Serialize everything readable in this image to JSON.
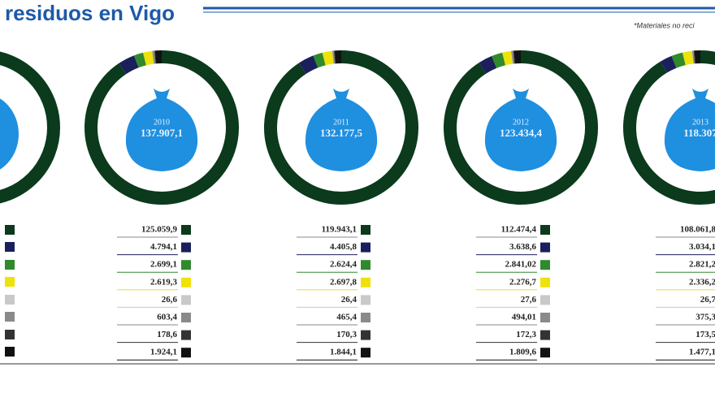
{
  "title": "residuos en Vigo",
  "note": "*Materiales no reci",
  "chart_data": [
    {
      "type": "donut",
      "title": "2010",
      "total": 137907.1,
      "total_label": "137.907,1",
      "colors": [
        "#0b3a1c",
        "#1b1f5c",
        "#2f8a2c",
        "#efe20a",
        "#c9c9c9",
        "#8a8a8a",
        "#333333",
        "#111111"
      ],
      "values": [
        125059.9,
        4794.1,
        2699.1,
        2619.3,
        26.6,
        603.4,
        178.6,
        1924.1
      ],
      "value_labels": [
        "125.059,9",
        "4.794,1",
        "2.699,1",
        "2.619,3",
        "26,6",
        "603,4",
        "178,6",
        "1.924,1"
      ]
    },
    {
      "type": "donut",
      "title": "2011",
      "total": 132177.5,
      "total_label": "132.177,5",
      "colors": [
        "#0b3a1c",
        "#1b1f5c",
        "#2f8a2c",
        "#efe20a",
        "#c9c9c9",
        "#8a8a8a",
        "#333333",
        "#111111"
      ],
      "values": [
        119943.1,
        4405.8,
        2624.4,
        2697.8,
        26.4,
        465.4,
        170.3,
        1844.1
      ],
      "value_labels": [
        "119.943,1",
        "4.405,8",
        "2.624,4",
        "2.697,8",
        "26,4",
        "465,4",
        "170,3",
        "1.844,1"
      ]
    },
    {
      "type": "donut",
      "title": "2012",
      "total": 123434.4,
      "total_label": "123.434,4",
      "colors": [
        "#0b3a1c",
        "#1b1f5c",
        "#2f8a2c",
        "#efe20a",
        "#c9c9c9",
        "#8a8a8a",
        "#333333",
        "#111111"
      ],
      "values": [
        112474.4,
        3638.6,
        2841.02,
        2276.7,
        27.6,
        494.01,
        172.3,
        1809.6
      ],
      "value_labels": [
        "112.474,4",
        "3.638,6",
        "2.841,02",
        "2.276,7",
        "27,6",
        "494,01",
        "172,3",
        "1.809,6"
      ]
    },
    {
      "type": "donut",
      "title": "2013",
      "total": 118307,
      "total_label": "118.307",
      "colors": [
        "#0b3a1c",
        "#1b1f5c",
        "#2f8a2c",
        "#efe20a",
        "#c9c9c9",
        "#8a8a8a",
        "#333333",
        "#111111"
      ],
      "values": [
        108061.8,
        3034.1,
        2821.2,
        2336.2,
        26.7,
        375.3,
        173.5,
        1477.1
      ],
      "value_labels": [
        "108.061,8",
        "3.034,1",
        "2.821,2",
        "2.336,2",
        "26,7",
        "375,3",
        "173,5",
        "1.477,1"
      ]
    }
  ]
}
